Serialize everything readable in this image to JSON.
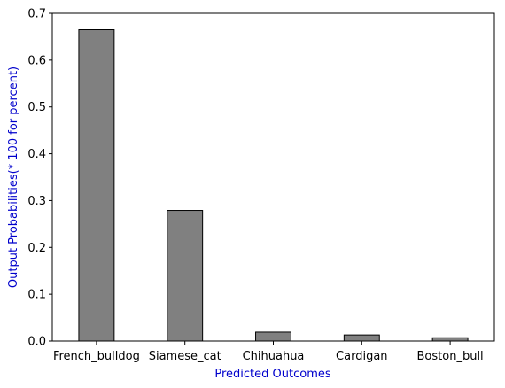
{
  "chart_data": {
    "type": "bar",
    "categories": [
      "French_bulldog",
      "Siamese_cat",
      "Chihuahua",
      "Cardigan",
      "Boston_bull"
    ],
    "values": [
      0.665,
      0.279,
      0.019,
      0.013,
      0.007
    ],
    "title": "",
    "xlabel": "Predicted Outcomes",
    "ylabel": "Output Probabilities(* 100 for percent)",
    "ylim": [
      0,
      0.7
    ],
    "yticks": [
      "0.0",
      "0.1",
      "0.2",
      "0.3",
      "0.4",
      "0.5",
      "0.6",
      "0.7"
    ],
    "grid": false,
    "bar_color": "#808080",
    "bar_edge_color": "#000000",
    "axis_label_color": "#0000cc"
  }
}
